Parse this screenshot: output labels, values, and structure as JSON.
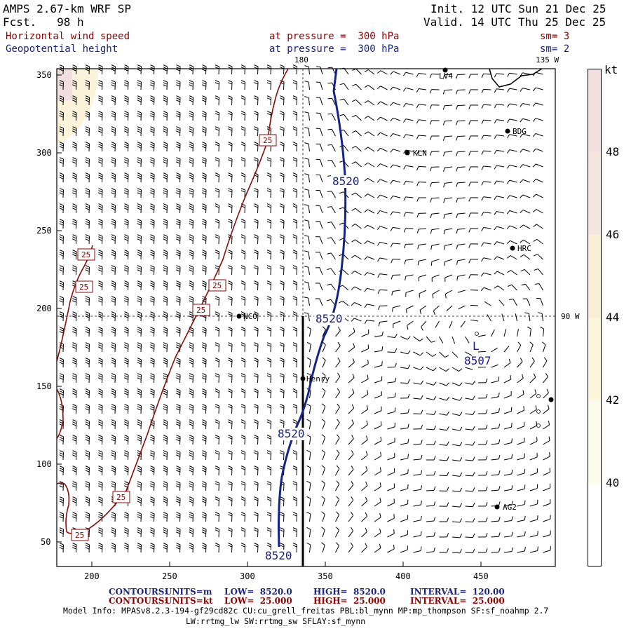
{
  "header": {
    "model": "AMPS 2.67-km WRF SP",
    "fcst": "Fcst.   98 h",
    "init": "Init. 12 UTC Sun 21 Dec 25",
    "valid": "Valid. 14 UTC Thu 25 Dec 25",
    "field1_name": "Horizontal wind speed",
    "field1_level": "at pressure =  300 hPa",
    "field1_sm": "sm= 3",
    "field2_name": "Geopotential height",
    "field2_level": "at pressure =  300 hPa",
    "field2_sm": "sm= 2"
  },
  "map": {
    "lon_label_180": "180",
    "lon_label_135w": "135 W",
    "lat_label_90w": "90 W",
    "x_ticks": [
      "200",
      "250",
      "300",
      "350",
      "400",
      "450"
    ],
    "y_ticks": [
      "350",
      "300",
      "250",
      "200",
      "150",
      "100",
      "50"
    ],
    "stations": [
      "LV4",
      "BDG",
      "KLN",
      "HRC",
      "NCO",
      "Henry",
      "AG2"
    ],
    "height_labels": [
      "8520",
      "8520",
      "8520",
      "8520",
      "8507"
    ],
    "low_marker": "L",
    "speed_labels": [
      "25",
      "25",
      "25",
      "25",
      "25",
      "25",
      "25"
    ]
  },
  "colorbar": {
    "unit": "kt",
    "ticks": [
      "48",
      "46",
      "44",
      "42",
      "40"
    ],
    "colors": [
      "#f3e1e1",
      "#f4e6dc",
      "#f8efd6",
      "#fbf6dc",
      "#fcfae8",
      "#ffffff"
    ]
  },
  "footer": {
    "c1_label": "CONTOURS:",
    "c1_units": "UNITS=m",
    "c1_low": "LOW=  8520.0",
    "c1_high": "HIGH=  8520.0",
    "c1_interval": "INTERVAL=  120.00",
    "c2_label": "CONTOURS:",
    "c2_units": "UNITS=kt",
    "c2_low": "LOW=  25.000",
    "c2_high": "HIGH=  25.000",
    "c2_interval": "INTERVAL=  25.000",
    "model_info1": "Model Info: MPASv8.2.3-194-gf29cd82c CU:cu_grell_freitas PBL:bl_mynn MP:mp_thompson SF:sf_noahmp 2.7",
    "model_info2": "LW:rrtmg_lw SW:rrtmg_sw SFLAY:sf_mynn"
  }
}
